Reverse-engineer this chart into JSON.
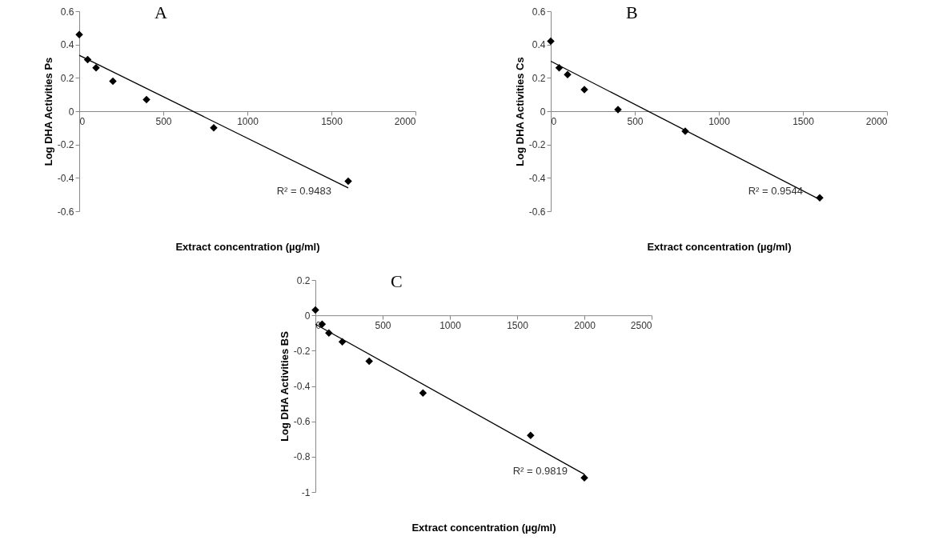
{
  "chart_data": [
    {
      "type": "scatter",
      "title": "A",
      "xlabel": "Extract concentration (µg/ml)",
      "ylabel": "Log DHA Activities Ps",
      "xlim": [
        0,
        2000
      ],
      "xticks": [
        0,
        500,
        1000,
        1500,
        2000
      ],
      "ylim": [
        -0.6,
        0.6
      ],
      "yticks": [
        -0.6,
        -0.4,
        -0.2,
        0,
        0.2,
        0.4,
        0.6
      ],
      "series": [
        {
          "marker": "diamond",
          "color": "#000000",
          "x": [
            0,
            50,
            100,
            200,
            400,
            800,
            1600
          ],
          "values": [
            0.46,
            0.31,
            0.26,
            0.18,
            0.07,
            -0.1,
            -0.42
          ]
        },
        {
          "type": "line",
          "color": "#000000",
          "x": [
            0,
            1600
          ],
          "values": [
            0.335,
            -0.46
          ]
        }
      ],
      "annotations": [
        "R² = 0.9483"
      ]
    },
    {
      "type": "scatter",
      "title": "B",
      "xlabel": "Extract concentration (µg/ml)",
      "ylabel": "Log DHA Activities Cs",
      "xlim": [
        0,
        2000
      ],
      "xticks": [
        0,
        500,
        1000,
        1500,
        2000
      ],
      "ylim": [
        -0.6,
        0.6
      ],
      "yticks": [
        -0.6,
        -0.4,
        -0.2,
        0,
        0.2,
        0.4,
        0.6
      ],
      "series": [
        {
          "marker": "diamond",
          "color": "#000000",
          "x": [
            0,
            50,
            100,
            200,
            400,
            800,
            1600
          ],
          "values": [
            0.42,
            0.26,
            0.22,
            0.13,
            0.01,
            -0.12,
            -0.52
          ]
        },
        {
          "type": "line",
          "color": "#000000",
          "x": [
            0,
            1600
          ],
          "values": [
            0.3,
            -0.53
          ]
        }
      ],
      "annotations": [
        "R² = 0.9544"
      ]
    },
    {
      "type": "scatter",
      "title": "C",
      "xlabel": "Extract concentration (µg/ml)",
      "ylabel": "Log DHA Activities BS",
      "xlim": [
        0,
        2500
      ],
      "xticks": [
        0,
        500,
        1000,
        1500,
        2000,
        2500
      ],
      "ylim": [
        -1,
        0.2
      ],
      "yticks": [
        -1,
        -0.8,
        -0.6,
        -0.4,
        -0.2,
        0,
        0.2
      ],
      "series": [
        {
          "marker": "diamond",
          "color": "#000000",
          "x": [
            0,
            50,
            100,
            200,
            400,
            800,
            1600,
            2000
          ],
          "values": [
            0.03,
            -0.05,
            -0.1,
            -0.15,
            -0.26,
            -0.44,
            -0.68,
            -0.92
          ]
        },
        {
          "type": "line",
          "color": "#000000",
          "x": [
            0,
            2000
          ],
          "values": [
            -0.05,
            -0.9
          ]
        }
      ],
      "annotations": [
        "R² = 0.9819"
      ]
    }
  ]
}
